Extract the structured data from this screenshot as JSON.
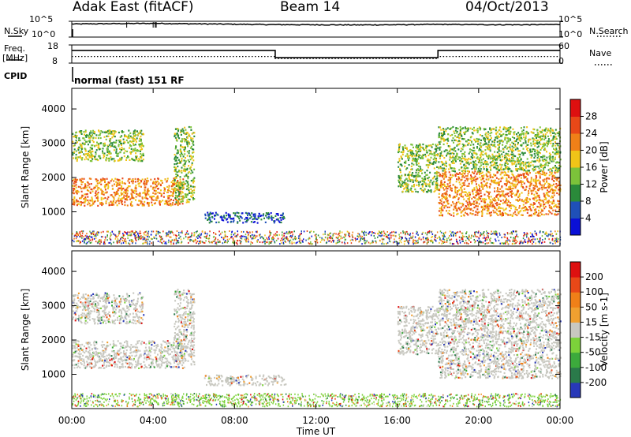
{
  "header": {
    "title": "Adak East (fitACF)",
    "beam": "Beam 14",
    "date": "04/Oct/2013"
  },
  "summary": {
    "nsky_label": "N.Sky",
    "nsearch_label": "N.Search",
    "freq_label": "Freq.",
    "freq_unit": "[MHz]",
    "nave_label": "Nave",
    "cpid_label": "CPID",
    "cpid_text": "normal (fast) 151 RF",
    "noise_left_ticks": [
      "10^5",
      "10^0"
    ],
    "noise_right_ticks": [
      "10^5",
      "10^0"
    ],
    "freq_ticks": [
      "18",
      "8"
    ],
    "nave_ticks": [
      "60",
      "0"
    ]
  },
  "colors": {
    "power_scale": [
      "#0a10d6",
      "#1f50b8",
      "#2a8a3a",
      "#7cc23a",
      "#f0c418",
      "#f08018",
      "#e84818",
      "#dd1010"
    ],
    "velocity_scale": [
      "#2838b8",
      "#2a7a4a",
      "#3caa3c",
      "#7cd23a",
      "#c8c8c0",
      "#f0a030",
      "#f08018",
      "#e84818",
      "#dd1010"
    ]
  },
  "chart_data": [
    {
      "type": "line",
      "name": "noise",
      "ylabel_left": "N.Sky",
      "ylabel_right": "N.Search",
      "yscale": "log",
      "ylim": [
        1,
        100000
      ],
      "x": [
        "00:00",
        "02:00",
        "04:00",
        "06:00",
        "08:00",
        "10:00",
        "12:00",
        "14:00",
        "16:00",
        "18:00",
        "20:00",
        "22:00",
        "24:00"
      ],
      "series": [
        {
          "name": "N.Sky",
          "values": [
            14000,
            18000,
            22000,
            16000,
            12000,
            9000,
            8000,
            7000,
            8000,
            11000,
            9000,
            8000,
            10000
          ]
        },
        {
          "name": "N.Search",
          "values": [
            3,
            3,
            3,
            3,
            3,
            3,
            3,
            3,
            3,
            3,
            3,
            3,
            3
          ]
        }
      ]
    },
    {
      "type": "line",
      "name": "frequency",
      "ylabel_left": "Freq. [MHz]",
      "ylabel_right": "Nave",
      "ylim_left": [
        8,
        18
      ],
      "ylim_right": [
        0,
        60
      ],
      "series": [
        {
          "name": "Freq.",
          "x": [
            "00:00",
            "10:00",
            "10:00",
            "18:00",
            "18:00",
            "24:00"
          ],
          "values": [
            15,
            15,
            11,
            11,
            15,
            15
          ]
        },
        {
          "name": "Nave",
          "x": [
            "00:00",
            "10:00",
            "10:00",
            "18:00",
            "18:00",
            "24:00"
          ],
          "values": [
            22,
            22,
            15,
            15,
            22,
            22
          ]
        }
      ]
    },
    {
      "type": "heatmap",
      "name": "power",
      "ylabel": "Slant Range [km]",
      "colorbar_label": "Power [dB]",
      "colorbar_ticks": [
        "4",
        "8",
        "12",
        "16",
        "20",
        "24",
        "28"
      ],
      "xlim": [
        "00:00",
        "24:00"
      ],
      "ylim": [
        0,
        4500
      ],
      "yticks": [
        "1000",
        "2000",
        "3000",
        "4000"
      ],
      "regions": [
        {
          "t": [
            0.0,
            5.5
          ],
          "r": [
            1200,
            2000
          ],
          "level": "high"
        },
        {
          "t": [
            0.0,
            3.5
          ],
          "r": [
            2500,
            3400
          ],
          "level": "medium"
        },
        {
          "t": [
            5.0,
            6.0
          ],
          "r": [
            1300,
            3500
          ],
          "level": "medium"
        },
        {
          "t": [
            6.5,
            10.5
          ],
          "r": [
            700,
            1000
          ],
          "level": "low"
        },
        {
          "t": [
            16.0,
            18.0
          ],
          "r": [
            1600,
            3000
          ],
          "level": "medium"
        },
        {
          "t": [
            18.0,
            24.0
          ],
          "r": [
            900,
            2200
          ],
          "level": "high"
        },
        {
          "t": [
            18.0,
            24.0
          ],
          "r": [
            2200,
            3500
          ],
          "level": "medium"
        }
      ]
    },
    {
      "type": "heatmap",
      "name": "velocity",
      "ylabel": "Slant Range [km]",
      "xlabel": "Time UT",
      "colorbar_label": "Velocity [m s-1]",
      "colorbar_ticks": [
        "200",
        "100",
        "50",
        "15",
        "-15",
        "-50",
        "-100",
        "-200"
      ],
      "xlim": [
        "00:00",
        "24:00"
      ],
      "ylim": [
        0,
        4500
      ],
      "yticks": [
        "1000",
        "2000",
        "3000",
        "4000"
      ],
      "xticks": [
        "00:00",
        "04:00",
        "08:00",
        "12:00",
        "16:00",
        "20:00",
        "00:00"
      ]
    }
  ]
}
